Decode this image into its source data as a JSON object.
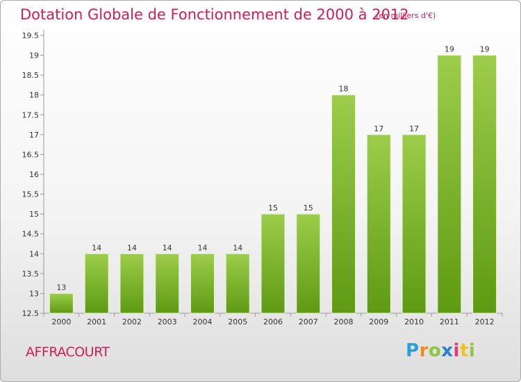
{
  "chart_data": {
    "type": "bar",
    "title": "Dotation Globale de Fonctionnement de 2000 à 2012",
    "subtitle": "(en milliers d'€)",
    "categories": [
      "2000",
      "2001",
      "2002",
      "2003",
      "2004",
      "2005",
      "2006",
      "2007",
      "2008",
      "2009",
      "2010",
      "2011",
      "2012"
    ],
    "values": [
      13,
      14,
      14,
      14,
      14,
      14,
      15,
      15,
      18,
      17,
      17,
      19,
      19
    ],
    "ylim": [
      12.5,
      19.5
    ],
    "yticks": [
      "12.5",
      "13",
      "13.5",
      "14",
      "14.5",
      "15",
      "15.5",
      "16",
      "16.5",
      "17",
      "17.5",
      "18",
      "18.5",
      "19",
      "19.5"
    ],
    "xlabel": "",
    "ylabel": "",
    "grid": false,
    "bar_color": "#7bb424"
  },
  "footer": {
    "commune": "AFFRACOURT",
    "logo_letters": [
      "P",
      "r",
      "o",
      "x",
      "i",
      "t",
      "i"
    ]
  }
}
